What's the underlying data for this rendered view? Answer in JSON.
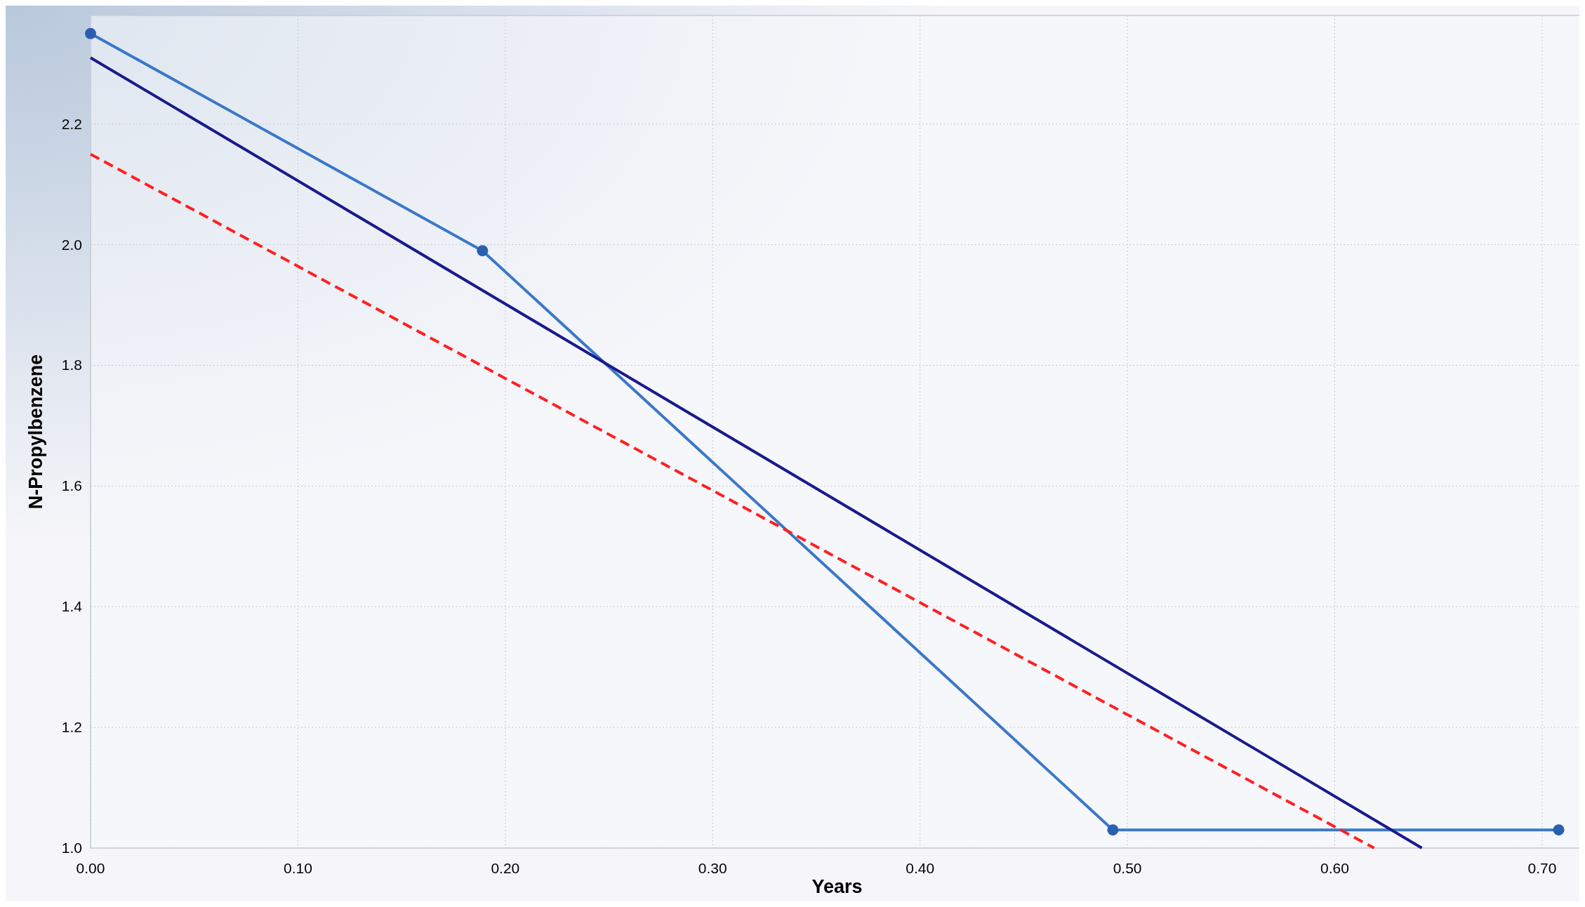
{
  "chart_data": {
    "type": "line",
    "xlabel": "Years",
    "ylabel": "N-Propylbenzene",
    "xlim": [
      0,
      0.72
    ],
    "ylim": [
      1.0,
      2.38
    ],
    "xticks": [
      {
        "value": 0,
        "label": "0.00"
      },
      {
        "value": 0.1,
        "label": "0.10"
      },
      {
        "value": 0.2,
        "label": "0.20"
      },
      {
        "value": 0.3,
        "label": "0.30"
      },
      {
        "value": 0.4,
        "label": "0.40"
      },
      {
        "value": 0.5,
        "label": "0.50"
      },
      {
        "value": 0.6,
        "label": "0.60"
      },
      {
        "value": 0.7,
        "label": "0.70"
      }
    ],
    "yticks": [
      {
        "value": 1,
        "label": "1.0"
      },
      {
        "value": 1.2,
        "label": "1.2"
      },
      {
        "value": 1.4,
        "label": "1.4"
      },
      {
        "value": 1.6,
        "label": "1.6"
      },
      {
        "value": 1.8,
        "label": "1.8"
      },
      {
        "value": 2,
        "label": "2.0"
      },
      {
        "value": 2.2,
        "label": "2.2"
      }
    ],
    "grid": true,
    "series": [
      {
        "color": "#3a78c8",
        "x": [
          0,
          0.189,
          0.493,
          0.708
        ],
        "values": [
          2.35,
          1.99,
          1.03,
          1.03
        ],
        "marker": "circle",
        "line_style": "solid"
      },
      {
        "color": "#1a1a8c",
        "x": [
          0,
          0.642
        ],
        "values": [
          2.31,
          1.0
        ],
        "marker": "none",
        "line_style": "solid"
      },
      {
        "color": "#ff2020",
        "x": [
          0,
          0.619
        ],
        "values": [
          2.15,
          1.0
        ],
        "marker": "none",
        "line_style": "dashed"
      }
    ]
  }
}
